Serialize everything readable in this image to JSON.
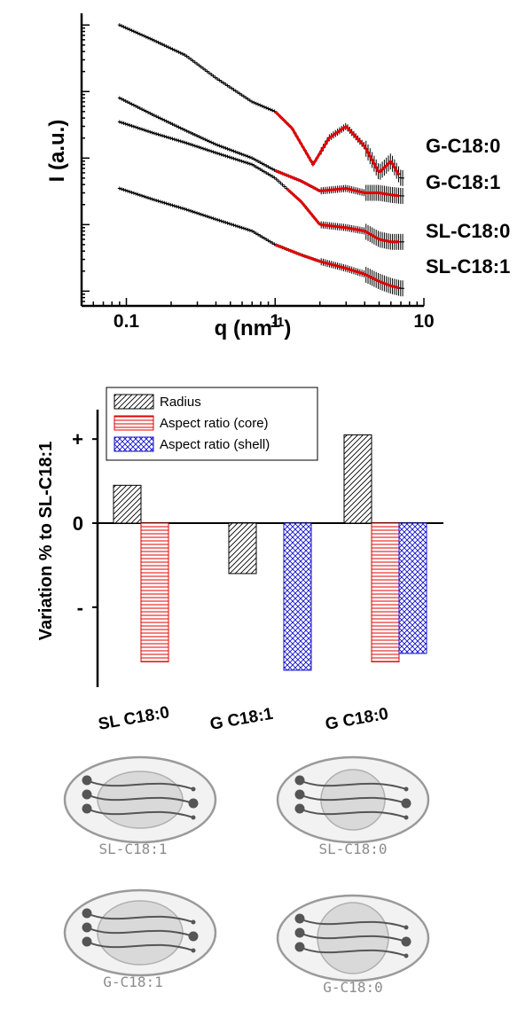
{
  "chart_data": [
    {
      "type": "scatter",
      "xlabel": "q (nm",
      "xlabel_sup": "-1",
      "xlabel_end": ")",
      "ylabel": "I (a.u.)",
      "xscale": "log",
      "xlim": [
        0.05,
        10
      ],
      "xticks": [
        "0.1",
        "1",
        "10"
      ],
      "series": [
        {
          "name": "G-C18:0",
          "x": [
            0.09,
            0.15,
            0.25,
            0.4,
            0.7,
            1.0,
            1.3,
            1.8,
            2.3,
            3.0,
            4.0,
            5.0,
            6.0,
            7.0
          ],
          "y": [
            100,
            60,
            35,
            16,
            7,
            5,
            2.8,
            0.8,
            2.0,
            3.0,
            1.5,
            0.6,
            0.9,
            0.5
          ],
          "fit_from": 1.0
        },
        {
          "name": "G-C18:1",
          "x": [
            0.09,
            0.15,
            0.25,
            0.4,
            0.7,
            1.0,
            1.5,
            2.0,
            3.0,
            4.0,
            5.0,
            6.0,
            7.0
          ],
          "y": [
            8,
            4.5,
            2.6,
            1.6,
            1.0,
            0.65,
            0.45,
            0.32,
            0.35,
            0.3,
            0.3,
            0.28,
            0.27
          ],
          "fit_from": 1.0
        },
        {
          "name": "SL-C18:0",
          "x": [
            0.09,
            0.15,
            0.25,
            0.4,
            0.7,
            1.0,
            1.5,
            2.0,
            3.0,
            4.0,
            5.0,
            6.0,
            7.0
          ],
          "y": [
            3.5,
            2.4,
            1.7,
            1.2,
            0.8,
            0.5,
            0.22,
            0.1,
            0.09,
            0.08,
            0.06,
            0.055,
            0.055
          ],
          "fit_from": 1.2
        },
        {
          "name": "SL-C18:1",
          "x": [
            0.09,
            0.15,
            0.25,
            0.4,
            0.7,
            1.0,
            1.5,
            2.0,
            3.0,
            4.0,
            5.0,
            6.0,
            7.0
          ],
          "y": [
            0.35,
            0.24,
            0.17,
            0.12,
            0.08,
            0.05,
            0.035,
            0.028,
            0.022,
            0.018,
            0.014,
            0.012,
            0.011
          ],
          "fit_from": 1.0
        }
      ],
      "series_colors": {
        "data": "#000000",
        "fit": "#e00000"
      }
    },
    {
      "type": "bar",
      "ylabel": "Variation % to SL-C18:1",
      "ytick_labels": [
        "+",
        "0",
        "-"
      ],
      "categories": [
        "SL C18:0",
        "G C18:1",
        "G C18:0"
      ],
      "series": [
        {
          "name": "Radius",
          "values": [
            0.45,
            -0.6,
            1.05
          ],
          "pattern": "diag-hatch",
          "color": "#000000"
        },
        {
          "name": "Aspect ratio (core)",
          "values": [
            -1.65,
            null,
            -1.65
          ],
          "pattern": "horizontal-lines",
          "color": "#e00000"
        },
        {
          "name": "Aspect ratio (shell)",
          "values": [
            null,
            -1.75,
            -1.55
          ],
          "pattern": "crosshatch",
          "color": "#1010cc"
        }
      ],
      "ylim": [
        -1.85,
        1.35
      ],
      "legend_position": "top"
    }
  ],
  "schematics": [
    {
      "label": "SL-C18:1"
    },
    {
      "label": "SL-C18:0"
    },
    {
      "label": "G-C18:1"
    },
    {
      "label": "G-C18:0"
    }
  ]
}
